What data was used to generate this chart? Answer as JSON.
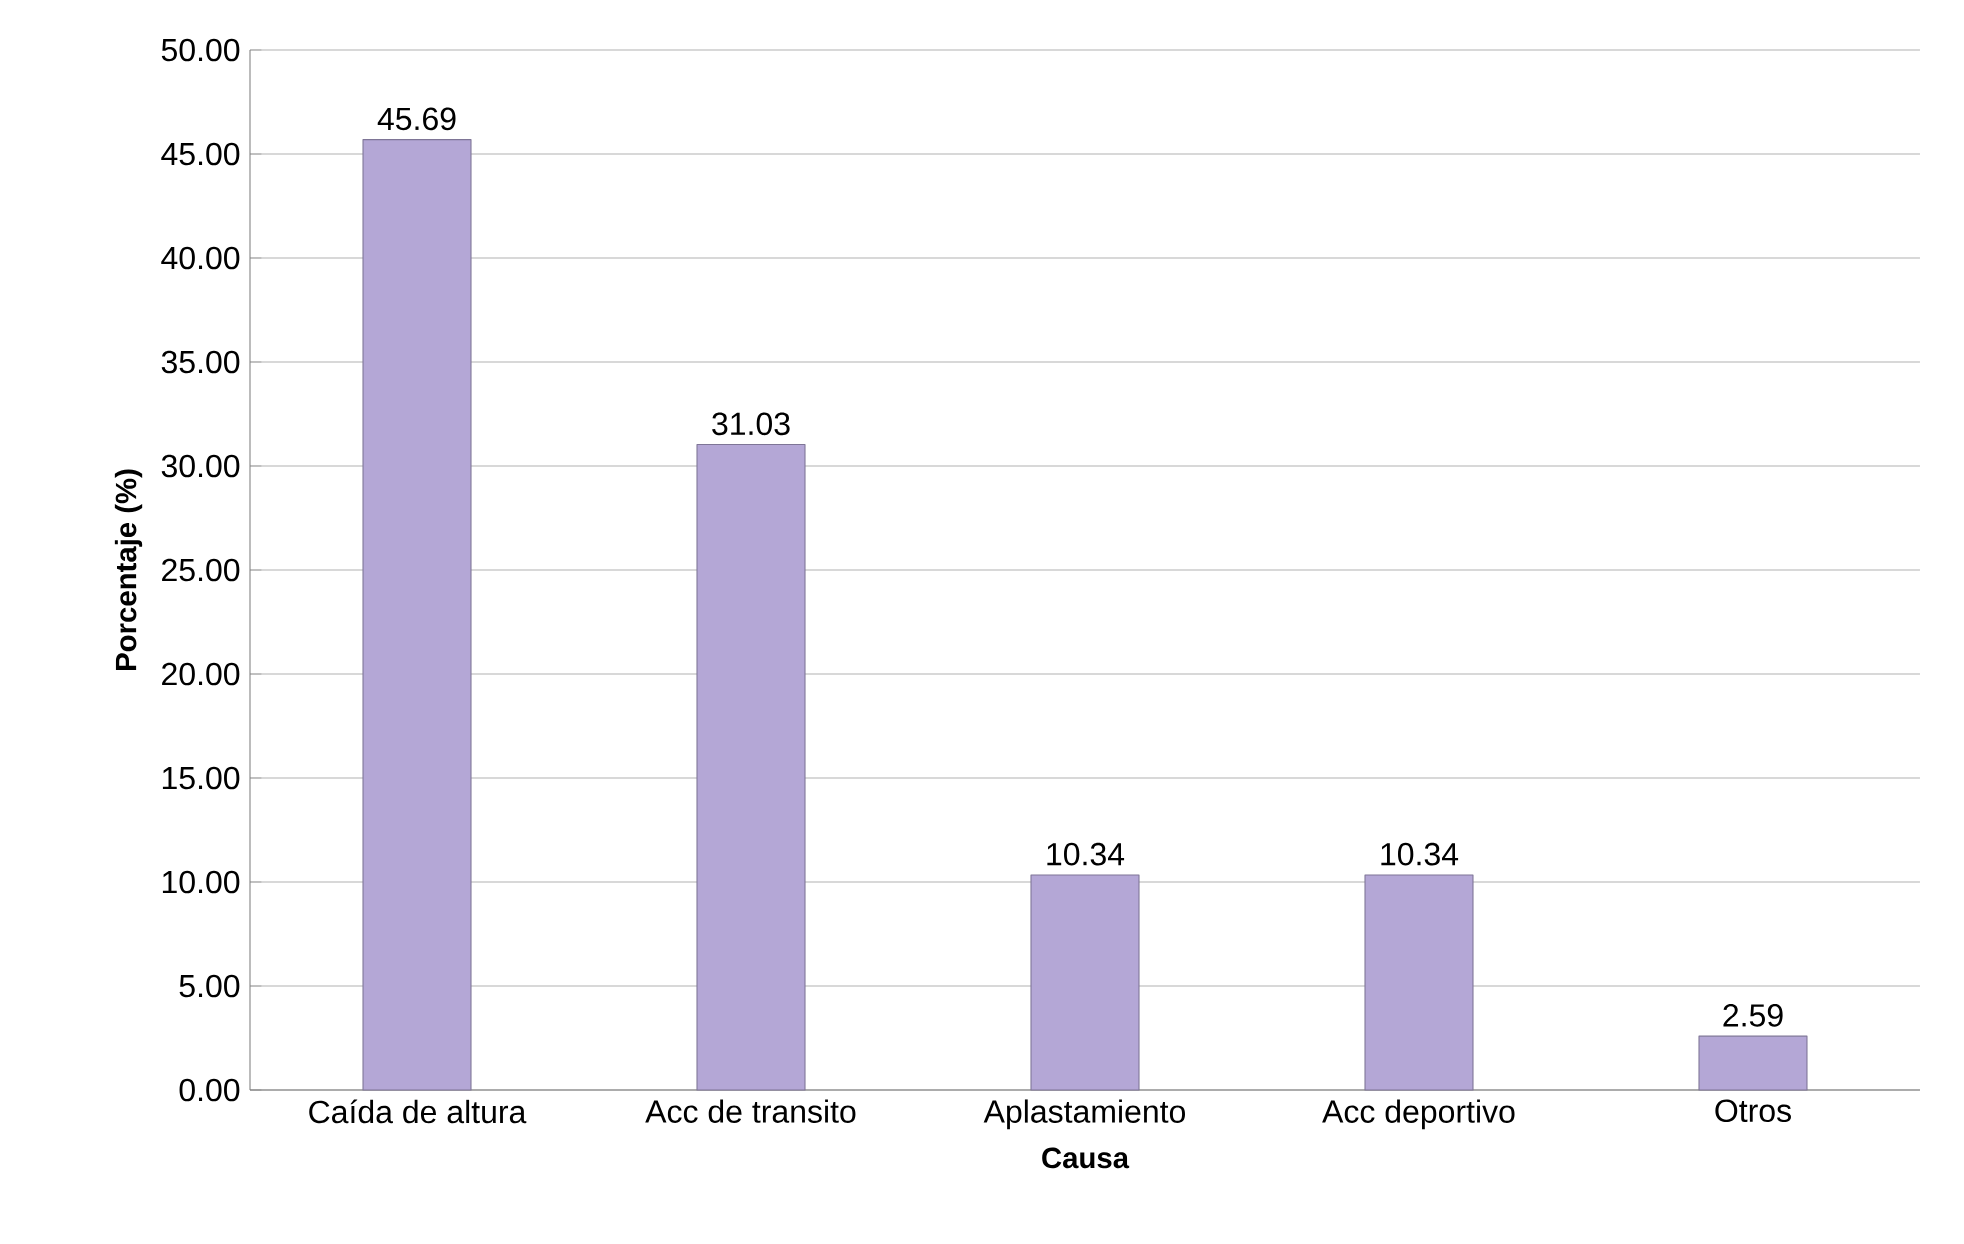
{
  "chart_data": {
    "type": "bar",
    "xlabel": "Causa",
    "ylabel": "Porcentaje (%)",
    "categories": [
      "Caída de altura",
      "Acc de transito",
      "Aplastamiento",
      "Acc deportivo",
      "Otros"
    ],
    "values": [
      45.69,
      31.03,
      10.34,
      10.34,
      2.59
    ],
    "color": "#b4a7d6",
    "ylim": [
      0,
      50
    ],
    "yticks": [
      {
        "value": 0,
        "label": "0.00"
      },
      {
        "value": 5,
        "label": "5.00"
      },
      {
        "value": 10,
        "label": "10.00"
      },
      {
        "value": 15,
        "label": "15.00"
      },
      {
        "value": 20,
        "label": "20.00"
      },
      {
        "value": 25,
        "label": "25.00"
      },
      {
        "value": 30,
        "label": "30.00"
      },
      {
        "value": 35,
        "label": "35.00"
      },
      {
        "value": 40,
        "label": "40.00"
      },
      {
        "value": 45,
        "label": "45.00"
      },
      {
        "value": 50,
        "label": "50.00"
      }
    ],
    "grid": "y",
    "data_labels": true
  }
}
